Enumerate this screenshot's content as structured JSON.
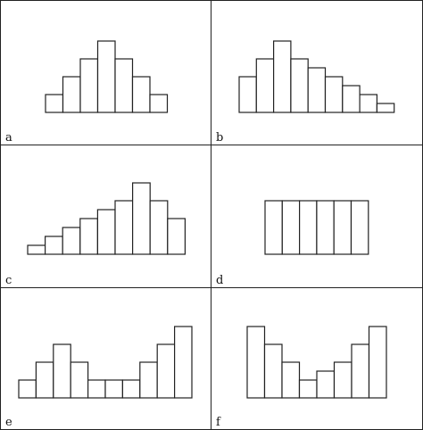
{
  "chart_data": [
    {
      "type": "bar",
      "label": "a",
      "values": [
        1,
        2,
        3,
        4,
        3,
        2,
        1
      ],
      "unit_max": 4
    },
    {
      "type": "bar",
      "label": "b",
      "values": [
        2,
        3,
        4,
        3,
        2.5,
        2,
        1.5,
        1,
        0.5
      ],
      "unit_max": 4
    },
    {
      "type": "bar",
      "label": "c",
      "values": [
        0.5,
        1,
        1.5,
        2,
        2.5,
        3,
        4,
        3,
        2
      ],
      "unit_max": 4
    },
    {
      "type": "bar",
      "label": "d",
      "values": [
        3,
        3,
        3,
        3,
        3,
        3
      ],
      "unit_max": 4
    },
    {
      "type": "bar",
      "label": "e",
      "values": [
        1,
        2,
        3,
        2,
        1,
        1,
        1,
        2,
        3,
        4
      ],
      "unit_max": 4
    },
    {
      "type": "bar",
      "label": "f",
      "values": [
        4,
        3,
        2,
        1,
        1.5,
        2,
        3,
        4
      ],
      "unit_max": 4
    }
  ]
}
